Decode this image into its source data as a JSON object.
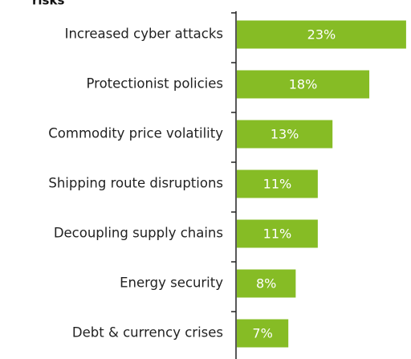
{
  "chart_data": {
    "type": "bar",
    "title": "risks",
    "categories": [
      "Increased cyber attacks",
      "Protectionist policies",
      "Commodity price volatility",
      "Shipping route disruptions",
      "Decoupling supply chains",
      "Energy security",
      "Debt & currency crises"
    ],
    "values": [
      23,
      18,
      13,
      11,
      11,
      8,
      7
    ],
    "value_labels": [
      "23%",
      "18%",
      "13%",
      "11%",
      "11%",
      "8%",
      "7%"
    ],
    "color": "#86bc25"
  }
}
